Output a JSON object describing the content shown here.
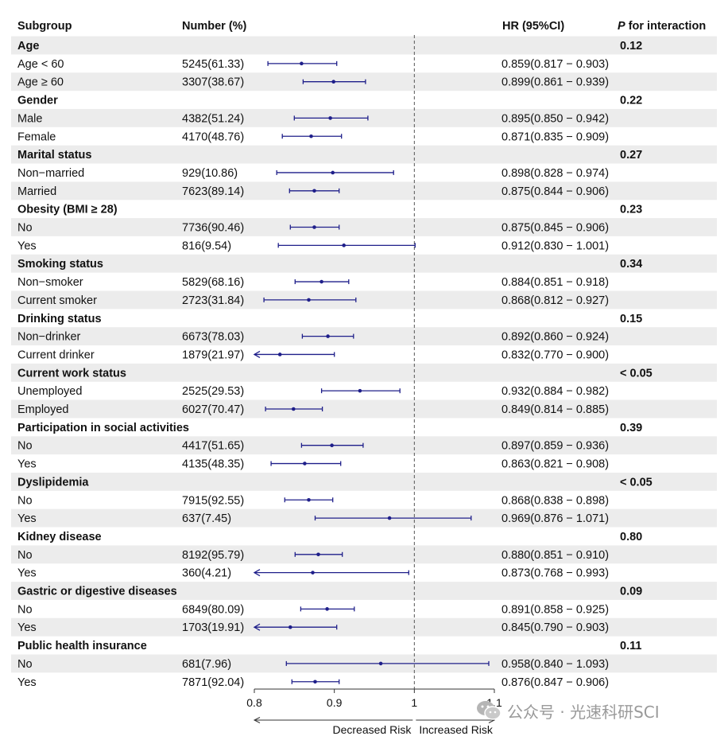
{
  "headers": {
    "subgroup": "Subgroup",
    "number": "Number (%)",
    "hr": "HR (95%CI)",
    "p_italic": "P",
    "p_rest": " for interaction"
  },
  "chart_data": {
    "type": "forest",
    "xlim": [
      0.8,
      1.1
    ],
    "xticks": [
      0.8,
      0.9,
      1,
      1.1
    ],
    "xtick_labels": [
      "0.8",
      "0.9",
      "1",
      "1.1"
    ],
    "reference_line": 1,
    "reference_line_style": "dashed",
    "arrow_left_label": "Decreased Risk",
    "arrow_right_label": "Increased Risk",
    "row_shading": "alternating light gray",
    "groups": [
      {
        "name": "Age",
        "p": "0.12",
        "rows": [
          {
            "label": "Age < 60",
            "number": "5245(61.33)",
            "hr": 0.859,
            "lo": 0.817,
            "hi": 0.903,
            "hr_text": "0.859(0.817 − 0.903)"
          },
          {
            "label": "Age ≥ 60",
            "number": "3307(38.67)",
            "hr": 0.899,
            "lo": 0.861,
            "hi": 0.939,
            "hr_text": "0.899(0.861 − 0.939)"
          }
        ]
      },
      {
        "name": "Gender",
        "p": "0.22",
        "rows": [
          {
            "label": "Male",
            "number": "4382(51.24)",
            "hr": 0.895,
            "lo": 0.85,
            "hi": 0.942,
            "hr_text": "0.895(0.850 − 0.942)"
          },
          {
            "label": "Female",
            "number": "4170(48.76)",
            "hr": 0.871,
            "lo": 0.835,
            "hi": 0.909,
            "hr_text": "0.871(0.835 − 0.909)"
          }
        ]
      },
      {
        "name": "Marital status",
        "p": "0.27",
        "rows": [
          {
            "label": "Non−married",
            "number": "929(10.86)",
            "hr": 0.898,
            "lo": 0.828,
            "hi": 0.974,
            "hr_text": "0.898(0.828 − 0.974)"
          },
          {
            "label": "Married",
            "number": "7623(89.14)",
            "hr": 0.875,
            "lo": 0.844,
            "hi": 0.906,
            "hr_text": "0.875(0.844 − 0.906)"
          }
        ]
      },
      {
        "name": "Obesity (BMI ≥ 28)",
        "p": "0.23",
        "rows": [
          {
            "label": "No",
            "number": "7736(90.46)",
            "hr": 0.875,
            "lo": 0.845,
            "hi": 0.906,
            "hr_text": "0.875(0.845 − 0.906)"
          },
          {
            "label": "Yes",
            "number": "816(9.54)",
            "hr": 0.912,
            "lo": 0.83,
            "hi": 1.001,
            "hr_text": "0.912(0.830 − 1.001)"
          }
        ]
      },
      {
        "name": "Smoking status",
        "p": "0.34",
        "rows": [
          {
            "label": "Non−smoker",
            "number": "5829(68.16)",
            "hr": 0.884,
            "lo": 0.851,
            "hi": 0.918,
            "hr_text": "0.884(0.851 − 0.918)"
          },
          {
            "label": "Current smoker",
            "number": "2723(31.84)",
            "hr": 0.868,
            "lo": 0.812,
            "hi": 0.927,
            "hr_text": "0.868(0.812 − 0.927)"
          }
        ]
      },
      {
        "name": "Drinking status",
        "p": "0.15",
        "rows": [
          {
            "label": "Non−drinker",
            "number": "6673(78.03)",
            "hr": 0.892,
            "lo": 0.86,
            "hi": 0.924,
            "hr_text": "0.892(0.860 − 0.924)"
          },
          {
            "label": "Current drinker",
            "number": "1879(21.97)",
            "hr": 0.832,
            "lo": 0.77,
            "hi": 0.9,
            "hr_text": "0.832(0.770 − 0.900)"
          }
        ]
      },
      {
        "name": "Current work status",
        "p": "< 0.05",
        "rows": [
          {
            "label": "Unemployed",
            "number": "2525(29.53)",
            "hr": 0.932,
            "lo": 0.884,
            "hi": 0.982,
            "hr_text": "0.932(0.884 − 0.982)"
          },
          {
            "label": "Employed",
            "number": "6027(70.47)",
            "hr": 0.849,
            "lo": 0.814,
            "hi": 0.885,
            "hr_text": "0.849(0.814 − 0.885)"
          }
        ]
      },
      {
        "name": "Participation in social activities",
        "p": "0.39",
        "rows": [
          {
            "label": "No",
            "number": "4417(51.65)",
            "hr": 0.897,
            "lo": 0.859,
            "hi": 0.936,
            "hr_text": "0.897(0.859 − 0.936)"
          },
          {
            "label": "Yes",
            "number": "4135(48.35)",
            "hr": 0.863,
            "lo": 0.821,
            "hi": 0.908,
            "hr_text": "0.863(0.821 − 0.908)"
          }
        ]
      },
      {
        "name": "Dyslipidemia",
        "p": "< 0.05",
        "rows": [
          {
            "label": "No",
            "number": "7915(92.55)",
            "hr": 0.868,
            "lo": 0.838,
            "hi": 0.898,
            "hr_text": "0.868(0.838 − 0.898)"
          },
          {
            "label": "Yes",
            "number": "637(7.45)",
            "hr": 0.969,
            "lo": 0.876,
            "hi": 1.071,
            "hr_text": "0.969(0.876 − 1.071)"
          }
        ]
      },
      {
        "name": "Kidney disease",
        "p": "0.80",
        "rows": [
          {
            "label": "No",
            "number": "8192(95.79)",
            "hr": 0.88,
            "lo": 0.851,
            "hi": 0.91,
            "hr_text": "0.880(0.851 − 0.910)"
          },
          {
            "label": "Yes",
            "number": "360(4.21)",
            "hr": 0.873,
            "lo": 0.768,
            "hi": 0.993,
            "hr_text": "0.873(0.768 − 0.993)"
          }
        ]
      },
      {
        "name": "Gastric or digestive diseases",
        "p": "0.09",
        "rows": [
          {
            "label": "No",
            "number": "6849(80.09)",
            "hr": 0.891,
            "lo": 0.858,
            "hi": 0.925,
            "hr_text": "0.891(0.858 − 0.925)"
          },
          {
            "label": "Yes",
            "number": "1703(19.91)",
            "hr": 0.845,
            "lo": 0.79,
            "hi": 0.903,
            "hr_text": "0.845(0.790 − 0.903)"
          }
        ]
      },
      {
        "name": "Public health insurance",
        "p": "0.11",
        "rows": [
          {
            "label": "No",
            "number": "681(7.96)",
            "hr": 0.958,
            "lo": 0.84,
            "hi": 1.093,
            "hr_text": "0.958(0.840 − 1.093)"
          },
          {
            "label": "Yes",
            "number": "7871(92.04)",
            "hr": 0.876,
            "lo": 0.847,
            "hi": 0.906,
            "hr_text": "0.876(0.847 − 0.906)"
          }
        ]
      }
    ]
  },
  "colors": {
    "ci_line": "#1f1f8a",
    "row_shade": "#ececec",
    "text": "#111111",
    "axis": "#333333"
  },
  "watermark": {
    "text": "公众号 · 光速科研SCI",
    "icon": "wechat-icon"
  }
}
